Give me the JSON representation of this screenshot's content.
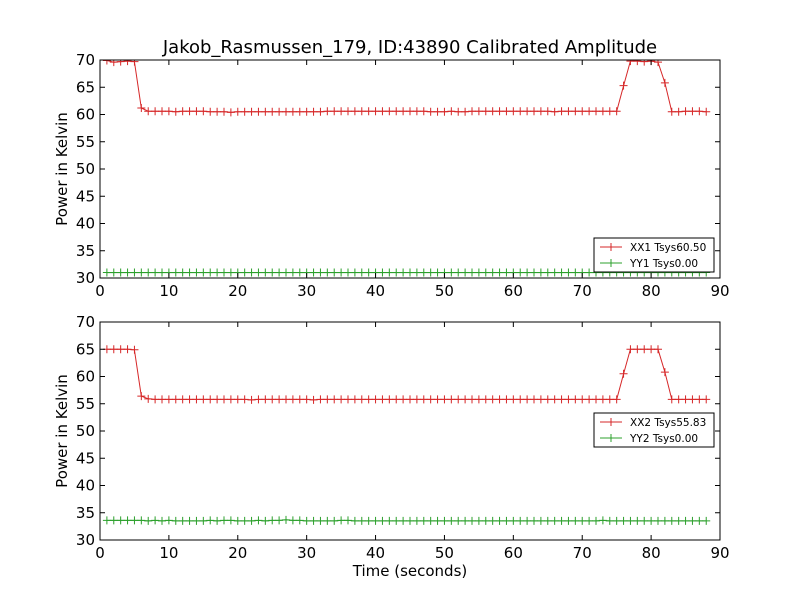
{
  "title": "Jakob_Rasmussen_179, ID:43890 Calibrated Amplitude",
  "chart_data": [
    {
      "type": "line",
      "ylabel": "Power in Kelvin",
      "xlabel": "",
      "xlim": [
        0,
        90
      ],
      "ylim": [
        30,
        70
      ],
      "xticks": [
        0,
        10,
        20,
        30,
        40,
        50,
        60,
        70,
        80,
        90
      ],
      "yticks": [
        30,
        35,
        40,
        45,
        50,
        55,
        60,
        65,
        70
      ],
      "grid": false,
      "legend_position": "lower-right",
      "series": [
        {
          "name": "XX1 Tsys60.50",
          "color": "#d62728",
          "x": [
            1,
            2,
            3,
            4,
            5,
            6,
            7,
            8,
            9,
            10,
            11,
            12,
            13,
            14,
            15,
            16,
            17,
            18,
            19,
            20,
            21,
            22,
            23,
            24,
            25,
            26,
            27,
            28,
            29,
            30,
            31,
            32,
            33,
            34,
            35,
            36,
            37,
            38,
            39,
            40,
            41,
            42,
            43,
            44,
            45,
            46,
            47,
            48,
            49,
            50,
            51,
            52,
            53,
            54,
            55,
            56,
            57,
            58,
            59,
            60,
            61,
            62,
            63,
            64,
            65,
            66,
            67,
            68,
            69,
            70,
            71,
            72,
            73,
            74,
            75,
            76,
            77,
            78,
            79,
            80,
            81,
            82,
            83,
            84,
            85,
            86,
            87,
            88
          ],
          "y": [
            69.9,
            69.6,
            69.7,
            69.8,
            69.7,
            61.2,
            60.6,
            60.6,
            60.6,
            60.6,
            60.5,
            60.6,
            60.6,
            60.6,
            60.6,
            60.5,
            60.5,
            60.5,
            60.4,
            60.5,
            60.5,
            60.5,
            60.5,
            60.5,
            60.5,
            60.5,
            60.5,
            60.5,
            60.5,
            60.5,
            60.5,
            60.5,
            60.6,
            60.6,
            60.6,
            60.6,
            60.6,
            60.6,
            60.6,
            60.6,
            60.6,
            60.6,
            60.6,
            60.6,
            60.6,
            60.6,
            60.6,
            60.5,
            60.5,
            60.5,
            60.6,
            60.5,
            60.5,
            60.6,
            60.6,
            60.6,
            60.6,
            60.6,
            60.6,
            60.6,
            60.6,
            60.6,
            60.6,
            60.6,
            60.6,
            60.5,
            60.6,
            60.6,
            60.6,
            60.6,
            60.6,
            60.6,
            60.6,
            60.6,
            60.6,
            65.3,
            69.8,
            69.8,
            69.7,
            69.8,
            69.6,
            65.8,
            60.5,
            60.5,
            60.6,
            60.6,
            60.6,
            60.5
          ]
        },
        {
          "name": "YY1 Tsys0.00",
          "color": "#2ca02c",
          "x": [
            1,
            2,
            3,
            4,
            5,
            6,
            7,
            8,
            9,
            10,
            11,
            12,
            13,
            14,
            15,
            16,
            17,
            18,
            19,
            20,
            21,
            22,
            23,
            24,
            25,
            26,
            27,
            28,
            29,
            30,
            31,
            32,
            33,
            34,
            35,
            36,
            37,
            38,
            39,
            40,
            41,
            42,
            43,
            44,
            45,
            46,
            47,
            48,
            49,
            50,
            51,
            52,
            53,
            54,
            55,
            56,
            57,
            58,
            59,
            60,
            61,
            62,
            63,
            64,
            65,
            66,
            67,
            68,
            69,
            70,
            71,
            72,
            73,
            74,
            75,
            76,
            77,
            78,
            79,
            80,
            81,
            82,
            83,
            84,
            85,
            86,
            87,
            88
          ],
          "y": [
            31.0,
            31.0,
            31.0,
            31.0,
            31.0,
            31.0,
            31.0,
            31.0,
            31.0,
            31.0,
            31.0,
            31.0,
            31.0,
            31.0,
            31.0,
            31.0,
            31.0,
            31.0,
            31.0,
            31.0,
            31.0,
            31.0,
            31.0,
            31.0,
            31.0,
            31.0,
            31.0,
            31.0,
            31.0,
            31.0,
            31.0,
            31.0,
            31.0,
            31.0,
            31.0,
            31.0,
            31.0,
            31.0,
            31.0,
            31.0,
            31.0,
            31.0,
            31.0,
            31.0,
            31.0,
            31.0,
            31.0,
            31.0,
            31.0,
            31.0,
            31.0,
            31.0,
            31.0,
            31.0,
            31.0,
            31.0,
            31.0,
            31.0,
            31.0,
            31.0,
            31.0,
            31.0,
            31.0,
            31.0,
            31.0,
            31.0,
            31.0,
            31.0,
            31.0,
            31.0,
            31.0,
            31.0,
            31.0,
            31.0,
            31.0,
            31.0,
            31.0,
            31.0,
            31.0,
            31.0,
            31.0,
            31.0,
            31.0,
            31.0,
            31.0,
            31.0,
            31.0,
            31.0
          ]
        }
      ]
    },
    {
      "type": "line",
      "ylabel": "Power in Kelvin",
      "xlabel": "Time (seconds)",
      "xlim": [
        0,
        90
      ],
      "ylim": [
        30,
        70
      ],
      "xticks": [
        0,
        10,
        20,
        30,
        40,
        50,
        60,
        70,
        80,
        90
      ],
      "yticks": [
        30,
        35,
        40,
        45,
        50,
        55,
        60,
        65,
        70
      ],
      "grid": false,
      "legend_position": "center-right",
      "series": [
        {
          "name": "XX2 Tsys55.83",
          "color": "#d62728",
          "x": [
            1,
            2,
            3,
            4,
            5,
            6,
            7,
            8,
            9,
            10,
            11,
            12,
            13,
            14,
            15,
            16,
            17,
            18,
            19,
            20,
            21,
            22,
            23,
            24,
            25,
            26,
            27,
            28,
            29,
            30,
            31,
            32,
            33,
            34,
            35,
            36,
            37,
            38,
            39,
            40,
            41,
            42,
            43,
            44,
            45,
            46,
            47,
            48,
            49,
            50,
            51,
            52,
            53,
            54,
            55,
            56,
            57,
            58,
            59,
            60,
            61,
            62,
            63,
            64,
            65,
            66,
            67,
            68,
            69,
            70,
            71,
            72,
            73,
            74,
            75,
            76,
            77,
            78,
            79,
            80,
            81,
            82,
            83,
            84,
            85,
            86,
            87,
            88
          ],
          "y": [
            65.0,
            65.0,
            65.0,
            65.0,
            64.9,
            56.4,
            55.9,
            55.8,
            55.8,
            55.8,
            55.8,
            55.8,
            55.8,
            55.8,
            55.8,
            55.8,
            55.8,
            55.8,
            55.8,
            55.8,
            55.8,
            55.7,
            55.8,
            55.8,
            55.8,
            55.8,
            55.8,
            55.8,
            55.8,
            55.8,
            55.7,
            55.8,
            55.8,
            55.8,
            55.8,
            55.8,
            55.8,
            55.8,
            55.8,
            55.8,
            55.8,
            55.8,
            55.8,
            55.8,
            55.8,
            55.8,
            55.8,
            55.8,
            55.8,
            55.8,
            55.8,
            55.8,
            55.8,
            55.8,
            55.8,
            55.8,
            55.8,
            55.8,
            55.8,
            55.8,
            55.8,
            55.8,
            55.8,
            55.8,
            55.8,
            55.8,
            55.8,
            55.8,
            55.8,
            55.8,
            55.8,
            55.8,
            55.8,
            55.8,
            55.8,
            60.5,
            65.0,
            65.0,
            65.0,
            65.0,
            65.0,
            60.8,
            55.8,
            55.8,
            55.8,
            55.8,
            55.8,
            55.8
          ]
        },
        {
          "name": "YY2 Tsys0.00",
          "color": "#2ca02c",
          "x": [
            1,
            2,
            3,
            4,
            5,
            6,
            7,
            8,
            9,
            10,
            11,
            12,
            13,
            14,
            15,
            16,
            17,
            18,
            19,
            20,
            21,
            22,
            23,
            24,
            25,
            26,
            27,
            28,
            29,
            30,
            31,
            32,
            33,
            34,
            35,
            36,
            37,
            38,
            39,
            40,
            41,
            42,
            43,
            44,
            45,
            46,
            47,
            48,
            49,
            50,
            51,
            52,
            53,
            54,
            55,
            56,
            57,
            58,
            59,
            60,
            61,
            62,
            63,
            64,
            65,
            66,
            67,
            68,
            69,
            70,
            71,
            72,
            73,
            74,
            75,
            76,
            77,
            78,
            79,
            80,
            81,
            82,
            83,
            84,
            85,
            86,
            87,
            88
          ],
          "y": [
            33.6,
            33.6,
            33.6,
            33.6,
            33.6,
            33.6,
            33.5,
            33.6,
            33.5,
            33.6,
            33.5,
            33.5,
            33.5,
            33.5,
            33.5,
            33.6,
            33.5,
            33.6,
            33.6,
            33.5,
            33.5,
            33.5,
            33.6,
            33.5,
            33.6,
            33.6,
            33.7,
            33.6,
            33.6,
            33.5,
            33.5,
            33.5,
            33.5,
            33.5,
            33.6,
            33.6,
            33.5,
            33.5,
            33.5,
            33.5,
            33.5,
            33.5,
            33.5,
            33.5,
            33.5,
            33.5,
            33.5,
            33.5,
            33.5,
            33.5,
            33.5,
            33.5,
            33.5,
            33.5,
            33.5,
            33.5,
            33.5,
            33.5,
            33.5,
            33.5,
            33.5,
            33.5,
            33.5,
            33.5,
            33.5,
            33.5,
            33.5,
            33.5,
            33.5,
            33.5,
            33.5,
            33.5,
            33.6,
            33.5,
            33.5,
            33.5,
            33.5,
            33.5,
            33.5,
            33.5,
            33.5,
            33.5,
            33.5,
            33.5,
            33.5,
            33.5,
            33.5,
            33.5
          ]
        }
      ]
    }
  ]
}
